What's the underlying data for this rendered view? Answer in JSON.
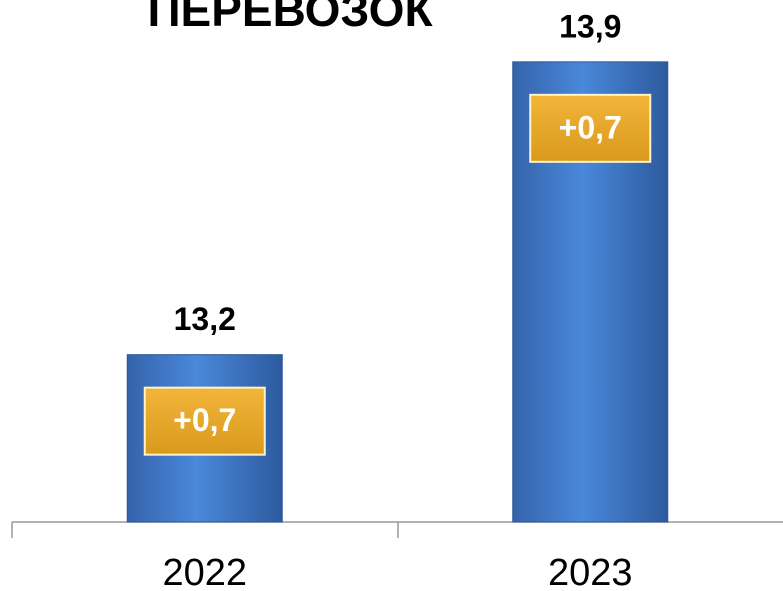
{
  "chart_data": {
    "type": "bar",
    "title": "ПЕРЕВОЗОК",
    "categories": [
      "2022",
      "2023"
    ],
    "values": [
      13.2,
      13.9
    ],
    "value_labels": [
      "13,2",
      "13,9"
    ],
    "annotations": [
      "+0,7",
      "+0,7"
    ],
    "color": "#3d75c4",
    "ylim": [
      12.8,
      14.0
    ]
  }
}
